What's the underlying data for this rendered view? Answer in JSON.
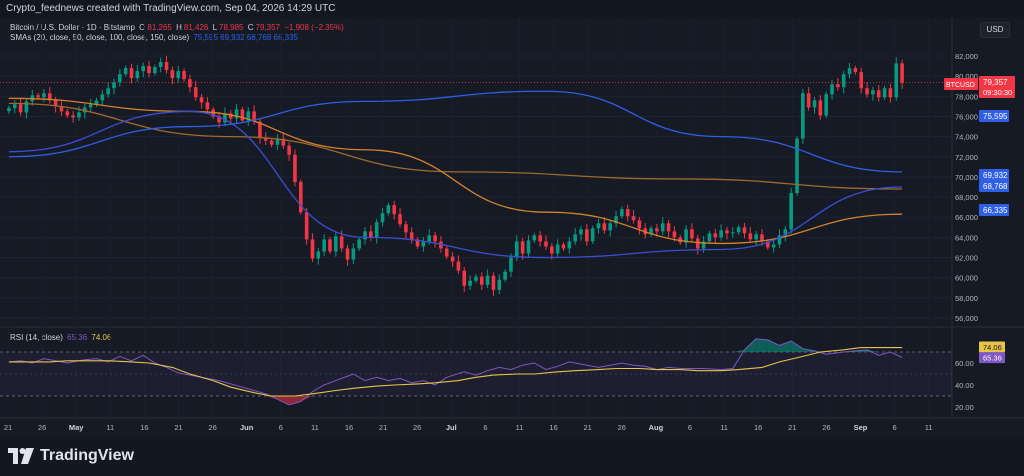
{
  "header": {
    "caption": "Crypto_feednews created with TradingView.com, Sep 04, 2026 14:29 UTC"
  },
  "legend": {
    "symbol": "Bitcoin / U.S. Dollar · 1D · Bitstamp",
    "o_label": "O",
    "o_value": "81,265",
    "h_label": "H",
    "h_value": "81,426",
    "l_label": "L",
    "l_value": "78,985",
    "c_label": "C",
    "c_value": "79,357",
    "change": "−1,908 (−2.35%)",
    "sma_label": "SMAs (20, close, 50, close, 100, close, 150, close)",
    "sma_values": "75,595  69,932  68,768  66,335"
  },
  "rsi_legend": {
    "label": "RSI (14, close)",
    "rsi_value": "65.36",
    "ma_value": "74.06"
  },
  "currency": "USD",
  "brand": "TradingView",
  "colors": {
    "up": "#089981",
    "down": "#f23645",
    "sma20": "#2f5fe6",
    "sma50": "#3b4fd6",
    "sma100": "#d4822a",
    "sma150": "#a06a2c",
    "rsi": "#7e57c2",
    "rsi_ma": "#e8c547"
  },
  "chart_data": [
    {
      "type": "candlestick",
      "title": "Bitcoin / U.S. Dollar · 1D · Bitstamp",
      "x_ticks": [
        "21",
        "26",
        "May",
        "11",
        "16",
        "21",
        "26",
        "Jun",
        "6",
        "11",
        "16",
        "21",
        "26",
        "Jul",
        "6",
        "11",
        "16",
        "21",
        "26",
        "Aug",
        "6",
        "11",
        "16",
        "21",
        "26",
        "Sep",
        "6",
        "11"
      ],
      "y_ticks": [
        "56,000",
        "58,000",
        "60,000",
        "62,000",
        "64,000",
        "66,000",
        "68,000",
        "70,000",
        "72,000",
        "74,000",
        "76,000",
        "78,000",
        "80,000",
        "82,000"
      ],
      "ylim": [
        55000,
        83500
      ],
      "price_labels": [
        {
          "text": "BTCUSD",
          "color": "#f23645"
        },
        {
          "text": "79,357",
          "color": "#f23645"
        },
        {
          "text": "09:30:30",
          "color": "#f23645"
        },
        {
          "text": "75,595",
          "color": "#2f5fe6"
        },
        {
          "text": "69,932",
          "color": "#2f5fe6"
        },
        {
          "text": "68,768",
          "color": "#2f5fe6"
        },
        {
          "text": "66,335",
          "color": "#2f5fe6"
        }
      ],
      "close": [
        76830,
        77200,
        76400,
        77500,
        78100,
        77900,
        78300,
        77600,
        77000,
        76500,
        76100,
        75900,
        76400,
        76900,
        77200,
        77600,
        78200,
        78800,
        79400,
        80200,
        80800,
        79800,
        80500,
        81000,
        80300,
        80900,
        81400,
        80600,
        79800,
        80500,
        79700,
        78900,
        77900,
        77400,
        76700,
        76000,
        75400,
        76300,
        75800,
        76700,
        75600,
        76500,
        75500,
        73900,
        73600,
        73200,
        73800,
        73100,
        72200,
        69500,
        66500,
        63800,
        61900,
        62600,
        63800,
        62600,
        64100,
        62900,
        61800,
        62900,
        63800,
        64600,
        64000,
        65500,
        66400,
        67200,
        66300,
        65300,
        64500,
        63800,
        63100,
        63600,
        64200,
        63600,
        62900,
        62100,
        61600,
        60700,
        59200,
        59700,
        60100,
        59300,
        60200,
        58800,
        59800,
        60600,
        62000,
        63600,
        62400,
        63700,
        64200,
        63600,
        63100,
        62400,
        63300,
        62900,
        63600,
        64300,
        64800,
        63600,
        64900,
        65400,
        64700,
        65400,
        66100,
        66800,
        66100,
        65700,
        64900,
        64300,
        64900,
        64600,
        65400,
        64600,
        64000,
        63500,
        64800,
        63900,
        62900,
        63600,
        64400,
        64000,
        64700,
        64400,
        64500,
        65000,
        64400,
        63800,
        64300,
        63600,
        63000,
        63300,
        64200,
        64800,
        68400,
        73800,
        78300,
        76900,
        77600,
        76100,
        78200,
        79200,
        78900,
        80200,
        80800,
        80400,
        78800,
        78200,
        78600,
        77900,
        78800,
        77900,
        81265,
        79357
      ],
      "sma20": [
        72000,
        75000,
        77500,
        78500,
        74000,
        70500
      ],
      "sma50": [
        72500,
        76500,
        64000,
        62000,
        62800,
        69000
      ],
      "sma100": [
        77800,
        76500,
        72700,
        66500,
        63400,
        66300
      ],
      "sma150": [
        77300,
        74000,
        70500,
        69800,
        68800
      ],
      "rsi_scale": [
        "20.00",
        "40.00",
        "60.00"
      ],
      "rsi_levels": [
        30,
        70
      ],
      "rsi": [
        61,
        62,
        60,
        64,
        62,
        60,
        63,
        64,
        61,
        66,
        62,
        67,
        60,
        56,
        51,
        49,
        46,
        44,
        41,
        38,
        35,
        32,
        27,
        22,
        25,
        34,
        40,
        46,
        50,
        44,
        47,
        44,
        46,
        42,
        44,
        40,
        47,
        52,
        49,
        53,
        56,
        54,
        58,
        60,
        54,
        57,
        61,
        58,
        56,
        58,
        60,
        58,
        57,
        54,
        56,
        55,
        55,
        55,
        54,
        55,
        72,
        82,
        81,
        76,
        80,
        73,
        71,
        68,
        70,
        71,
        72,
        67,
        70,
        65
      ],
      "rsi_ma": [
        61,
        61,
        61,
        62,
        62,
        62,
        61,
        60,
        56,
        50,
        44,
        38,
        33,
        30,
        30,
        32,
        35,
        37,
        39,
        40,
        41,
        42,
        44,
        47,
        49,
        50,
        50,
        52,
        53,
        54,
        55,
        55,
        54,
        54,
        53,
        53,
        54,
        56,
        61,
        66,
        70,
        72,
        74,
        74,
        74
      ]
    }
  ]
}
